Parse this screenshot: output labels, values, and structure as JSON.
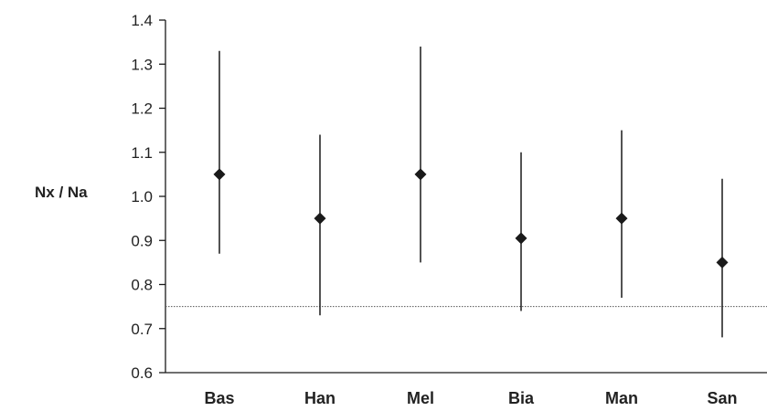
{
  "chart_data": {
    "type": "scatter",
    "title": "",
    "xlabel": "",
    "ylabel": "Nx / Na",
    "categories": [
      "Bas",
      "Han",
      "Mel",
      "Bia",
      "Man",
      "San"
    ],
    "series": [
      {
        "values": [
          1.05,
          0.95,
          1.05,
          0.905,
          0.95,
          0.85
        ],
        "lower": [
          0.87,
          0.73,
          0.85,
          0.74,
          0.77,
          0.68
        ],
        "upper": [
          1.33,
          1.14,
          1.34,
          1.1,
          1.15,
          1.04
        ]
      }
    ],
    "ylim": [
      0.6,
      1.4
    ],
    "yticks": [
      "0.6",
      "0.7",
      "0.8",
      "0.9",
      "1.0",
      "1.1",
      "1.2",
      "1.3",
      "1.4"
    ],
    "reference_line": 0.75,
    "grid": false,
    "legend": "none",
    "colors": {
      "marker": "#1a1a1a",
      "axis": "#1a1a1a",
      "reference": "#555555"
    }
  }
}
